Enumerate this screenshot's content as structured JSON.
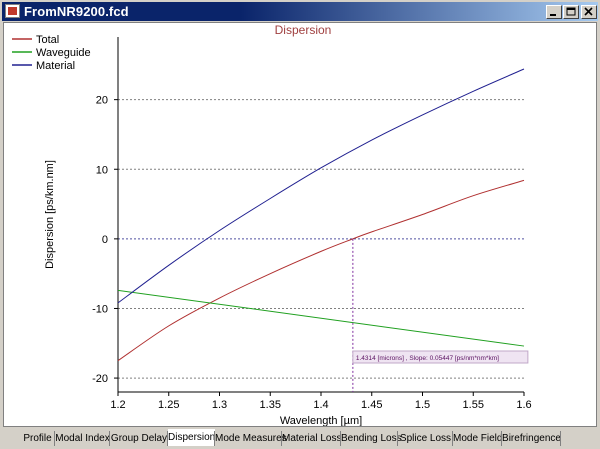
{
  "window": {
    "title": "FromNR9200.fcd"
  },
  "chart_data": {
    "type": "line",
    "title": "Dispersion",
    "xlabel": "Wavelength [µm]",
    "ylabel": "Dispersion [ps/km.nm]",
    "xlim": [
      1.2,
      1.6
    ],
    "ylim": [
      -22,
      29
    ],
    "xticks": [
      1.2,
      1.25,
      1.3,
      1.35,
      1.4,
      1.45,
      1.5,
      1.55,
      1.6
    ],
    "xtick_labels": [
      "1.2",
      "1.25",
      "1.3",
      "1.35",
      "1.4",
      "1.45",
      "1.5",
      "1.55",
      "1.6"
    ],
    "yticks": [
      -20,
      -10,
      0,
      10,
      20
    ],
    "ytick_labels": [
      "-20",
      "-10",
      "0",
      "10",
      "20"
    ],
    "grid": "horizontal dashed",
    "legend_position": "top-left",
    "series": [
      {
        "name": "Total",
        "color": "#b03030",
        "x": [
          1.2,
          1.25,
          1.3,
          1.35,
          1.4,
          1.4314,
          1.45,
          1.5,
          1.55,
          1.6
        ],
        "y": [
          -17.5,
          -12.5,
          -8.5,
          -5.0,
          -1.8,
          0.0,
          1.0,
          3.5,
          6.2,
          8.4
        ]
      },
      {
        "name": "Waveguide",
        "color": "#20a020",
        "x": [
          1.2,
          1.6
        ],
        "y": [
          -7.4,
          -15.4
        ]
      },
      {
        "name": "Material",
        "color": "#202090",
        "x": [
          1.2,
          1.25,
          1.3,
          1.35,
          1.4,
          1.45,
          1.5,
          1.55,
          1.6
        ],
        "y": [
          -9.2,
          -3.8,
          1.2,
          5.8,
          10.2,
          14.2,
          17.8,
          21.2,
          24.4
        ]
      }
    ],
    "marker": {
      "x": 1.4314,
      "y": 0
    },
    "annotation": "1.4314 [microns] , Slope: 0.05447 [ps/nm*nm*km]"
  },
  "tabs": [
    {
      "label": "Profile",
      "active": false
    },
    {
      "label": "Modal Index",
      "active": false
    },
    {
      "label": "Group Delay",
      "active": false
    },
    {
      "label": "Dispersion",
      "active": true
    },
    {
      "label": "Mode Measures",
      "active": false
    },
    {
      "label": "Material Loss",
      "active": false
    },
    {
      "label": "Bending Loss",
      "active": false
    },
    {
      "label": "Splice Loss",
      "active": false
    },
    {
      "label": "Mode Field",
      "active": false
    },
    {
      "label": "Birefringence",
      "active": false
    }
  ]
}
